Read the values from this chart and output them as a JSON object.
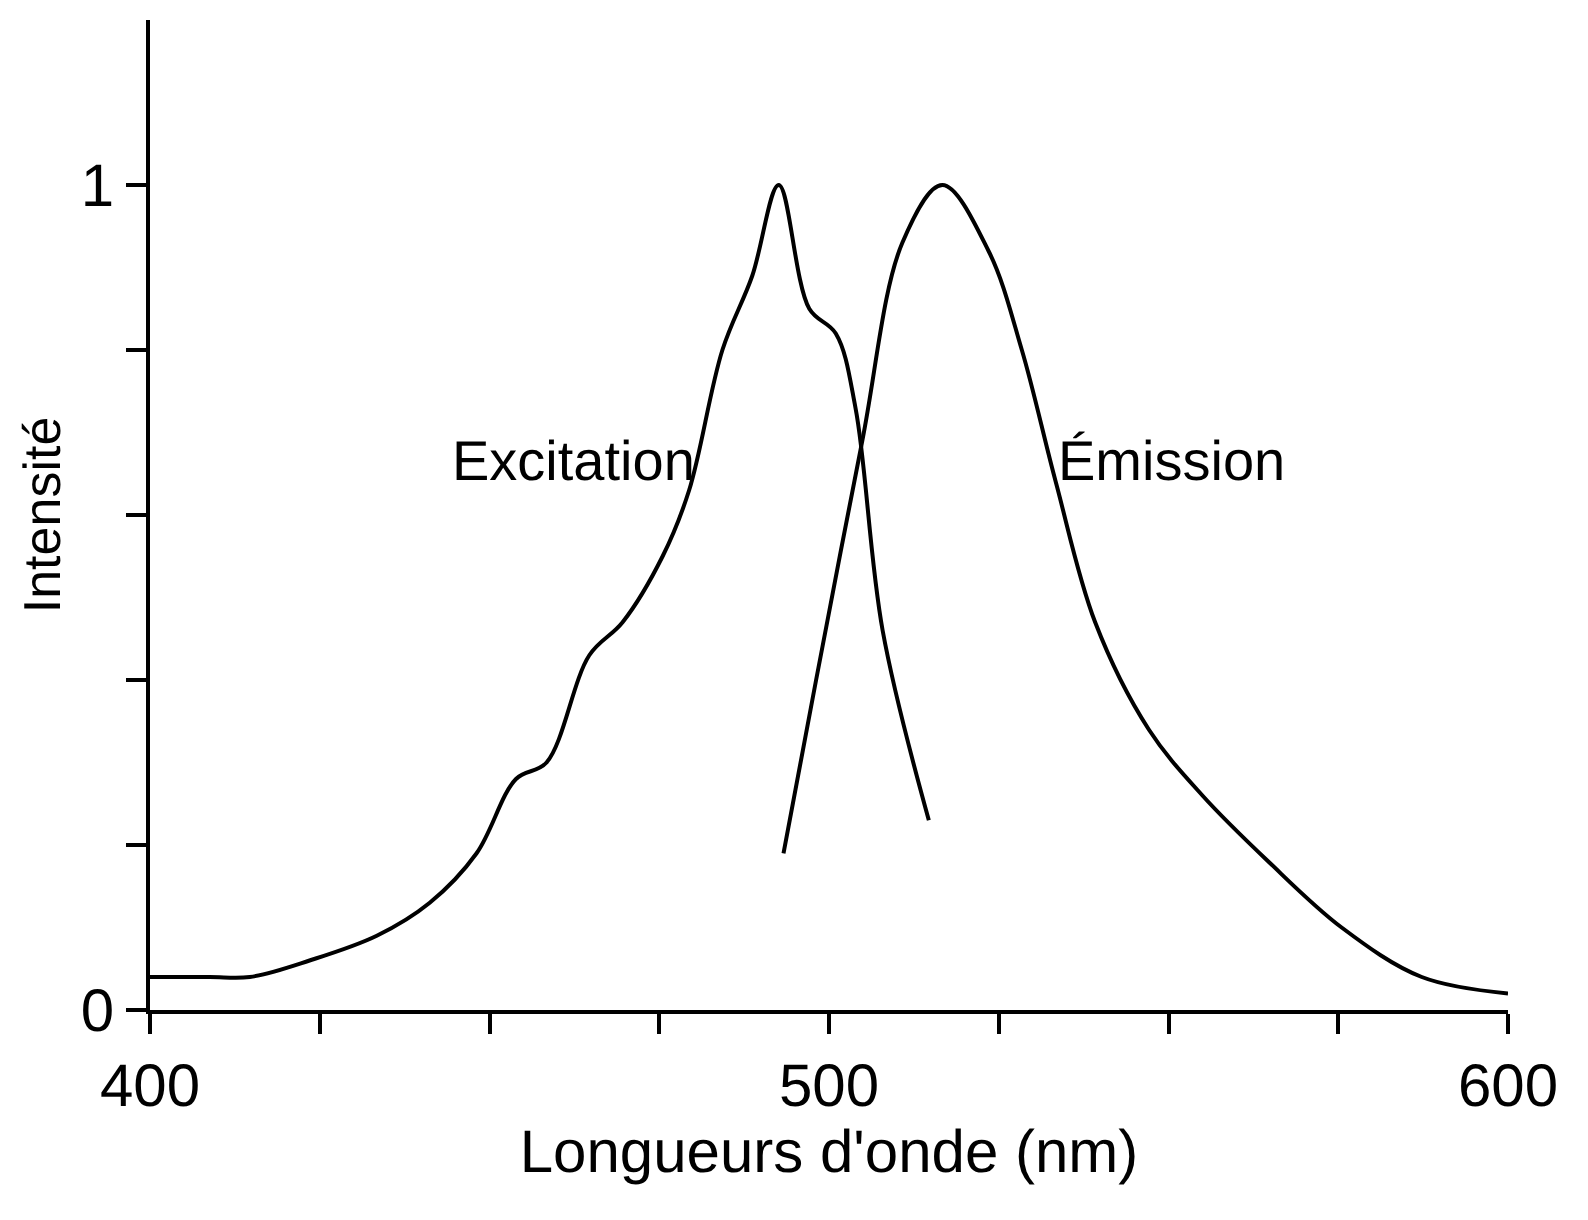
{
  "chart_data": {
    "type": "line",
    "xlabel": "Longueurs d'onde (nm)",
    "ylabel": "Intensité",
    "xlim": [
      400,
      600
    ],
    "ylim": [
      0,
      1.2
    ],
    "xticks": [
      400,
      {
        "value": 425,
        "label": null
      },
      {
        "value": 450,
        "label": null
      },
      {
        "value": 475,
        "label": null
      },
      500,
      {
        "value": 525,
        "label": null
      },
      {
        "value": 550,
        "label": null
      },
      {
        "value": 575,
        "label": null
      },
      600
    ],
    "yticks": [
      0,
      {
        "value": 0.2,
        "label": null
      },
      {
        "value": 0.4,
        "label": null
      },
      {
        "value": 0.6,
        "label": null
      },
      {
        "value": 0.8,
        "label": null
      },
      1
    ],
    "legend": false,
    "marker": "none",
    "line_style": "solid",
    "series": [
      {
        "name": "Excitation",
        "color": "#000000",
        "x": [
          400,
          408.8,
          414.7,
          423.5,
          433.4,
          441.2,
          448.1,
          453.9,
          458.4,
          464.7,
          469.6,
          475.5,
          479.4,
          484.3,
          488.7,
          492.6,
          497.1,
          501.0,
          503.9,
          507.9,
          514.7
        ],
        "values": [
          0.04,
          0.04,
          0.04,
          0.06,
          0.09,
          0.13,
          0.19,
          0.28,
          0.3,
          0.43,
          0.47,
          0.55,
          0.63,
          0.8,
          0.89,
          1.0,
          0.85,
          0.82,
          0.73,
          0.46,
          0.23
        ]
      },
      {
        "name": "Émission",
        "color": "#000000",
        "x": [
          493.3,
          498.1,
          504.9,
          510.8,
          516.7,
          523.5,
          528.4,
          533.4,
          539.2,
          547.1,
          555.0,
          564.7,
          575.5,
          587.3,
          600
        ],
        "values": [
          0.19,
          0.4,
          0.69,
          0.93,
          1.0,
          0.92,
          0.8,
          0.64,
          0.47,
          0.34,
          0.26,
          0.18,
          0.1,
          0.04,
          0.02
        ]
      }
    ]
  }
}
